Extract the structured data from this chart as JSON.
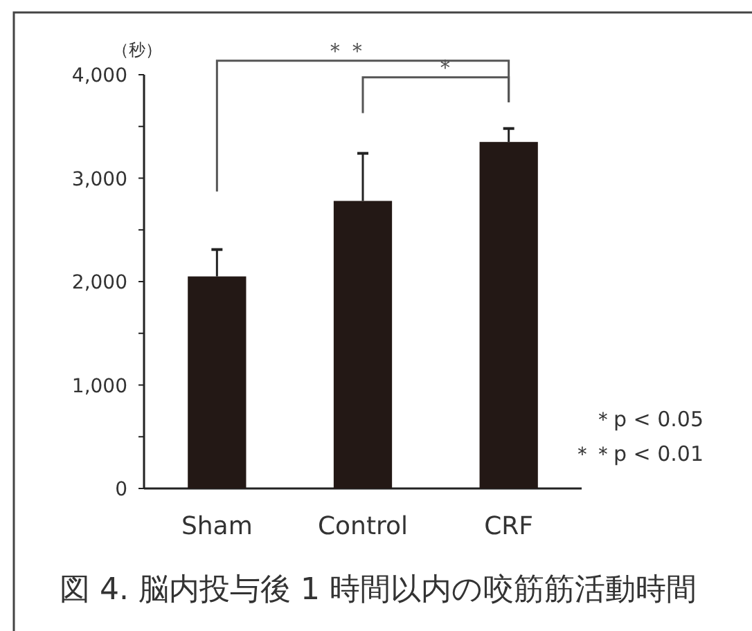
{
  "chart_data": {
    "type": "bar",
    "title": "図 4. 脳内投与後 1 時間以内の咬筋筋活動時間",
    "ylabel": "（秒）",
    "categories": [
      "Sham",
      "Control",
      "CRF"
    ],
    "values": [
      2050,
      2780,
      3350
    ],
    "errors": [
      [
        2050,
        2310
      ],
      [
        2780,
        3240
      ],
      [
        3350,
        3480
      ]
    ],
    "color": "#231815",
    "ylim": [
      0,
      4000
    ],
    "yticks": [
      0,
      {
        "value": 500,
        "label": null
      },
      {
        "value": 1000,
        "label": "1,000"
      },
      {
        "value": 1500,
        "label": null
      },
      {
        "value": 2000,
        "label": "2,000"
      },
      {
        "value": 2500,
        "label": null
      },
      {
        "value": 3000,
        "label": "3,000"
      },
      {
        "value": 3500,
        "label": null
      },
      {
        "value": 4000,
        "label": "4,000"
      }
    ],
    "annotations": [
      "＊＊",
      "＊",
      "＊p < 0.05",
      "＊＊p < 0.01"
    ],
    "grid": false
  }
}
